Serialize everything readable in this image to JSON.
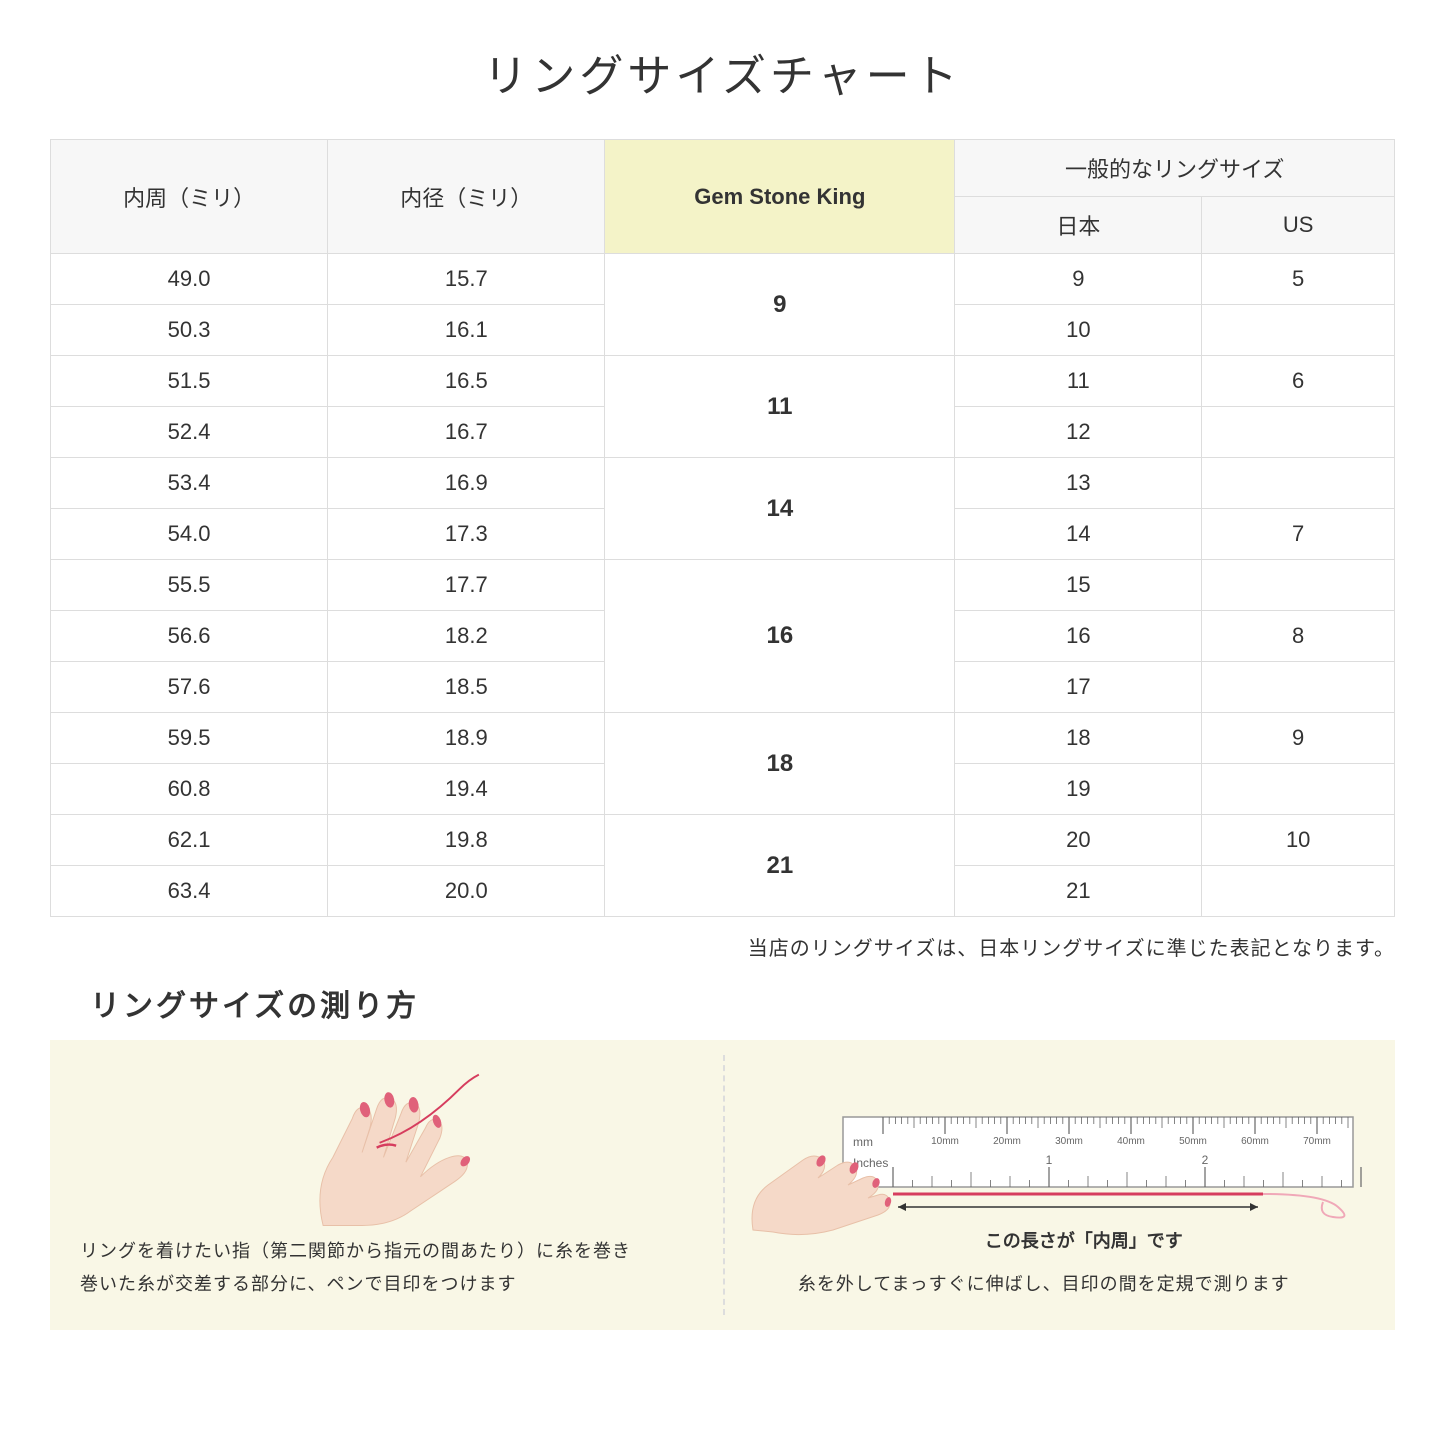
{
  "title": "リングサイズチャート",
  "headers": {
    "innerCircumference": "内周（ミリ）",
    "innerDiameter": "内径（ミリ）",
    "gemStoneKing": "Gem Stone King",
    "generalSize": "一般的なリングサイズ",
    "japan": "日本",
    "us": "US"
  },
  "rows": [
    {
      "circ": "49.0",
      "diam": "15.7",
      "gsk": "9",
      "gskSpan": 2,
      "jp": "9",
      "us": "5"
    },
    {
      "circ": "50.3",
      "diam": "16.1",
      "jp": "10",
      "us": ""
    },
    {
      "circ": "51.5",
      "diam": "16.5",
      "gsk": "11",
      "gskSpan": 2,
      "jp": "11",
      "us": "6"
    },
    {
      "circ": "52.4",
      "diam": "16.7",
      "jp": "12",
      "us": ""
    },
    {
      "circ": "53.4",
      "diam": "16.9",
      "gsk": "14",
      "gskSpan": 2,
      "jp": "13",
      "us": ""
    },
    {
      "circ": "54.0",
      "diam": "17.3",
      "jp": "14",
      "us": "7"
    },
    {
      "circ": "55.5",
      "diam": "17.7",
      "gsk": "16",
      "gskSpan": 3,
      "jp": "15",
      "us": ""
    },
    {
      "circ": "56.6",
      "diam": "18.2",
      "jp": "16",
      "us": "8"
    },
    {
      "circ": "57.6",
      "diam": "18.5",
      "jp": "17",
      "us": ""
    },
    {
      "circ": "59.5",
      "diam": "18.9",
      "gsk": "18",
      "gskSpan": 2,
      "jp": "18",
      "us": "9"
    },
    {
      "circ": "60.8",
      "diam": "19.4",
      "jp": "19",
      "us": ""
    },
    {
      "circ": "62.1",
      "diam": "19.8",
      "gsk": "21",
      "gskSpan": 2,
      "jp": "20",
      "us": "10"
    },
    {
      "circ": "63.4",
      "diam": "20.0",
      "jp": "21",
      "us": ""
    }
  ],
  "note": "当店のリングサイズは、日本リングサイズに準じた表記となります。",
  "subtitle": "リングサイズの測り方",
  "instruction1": "リングを着けたい指（第二関節から指元の間あたり）に糸を巻き\n巻いた糸が交差する部分に、ペンで目印をつけます",
  "measureLabel": "この長さが「内周」です",
  "instruction2": "糸を外してまっすぐに伸ばし、目印の間を定規で測ります",
  "rulerLabels": {
    "mm": "mm",
    "inches": "Inches",
    "mmTicks": [
      "10mm",
      "20mm",
      "30mm",
      "40mm",
      "50mm",
      "60mm",
      "70mm"
    ],
    "inchTicks": [
      "1",
      "2"
    ]
  },
  "colors": {
    "background": "#ffffff",
    "panelBg": "#f9f7e6",
    "headerBg": "#f7f7f7",
    "highlightBg": "#f4f3c8",
    "border": "#dddddd",
    "skin": "#f5d9c8",
    "skinShadow": "#e8c0a8",
    "nail": "#e0617a",
    "thread": "#d63d5e",
    "rulerFill": "#ffffff",
    "rulerStroke": "#999999"
  }
}
